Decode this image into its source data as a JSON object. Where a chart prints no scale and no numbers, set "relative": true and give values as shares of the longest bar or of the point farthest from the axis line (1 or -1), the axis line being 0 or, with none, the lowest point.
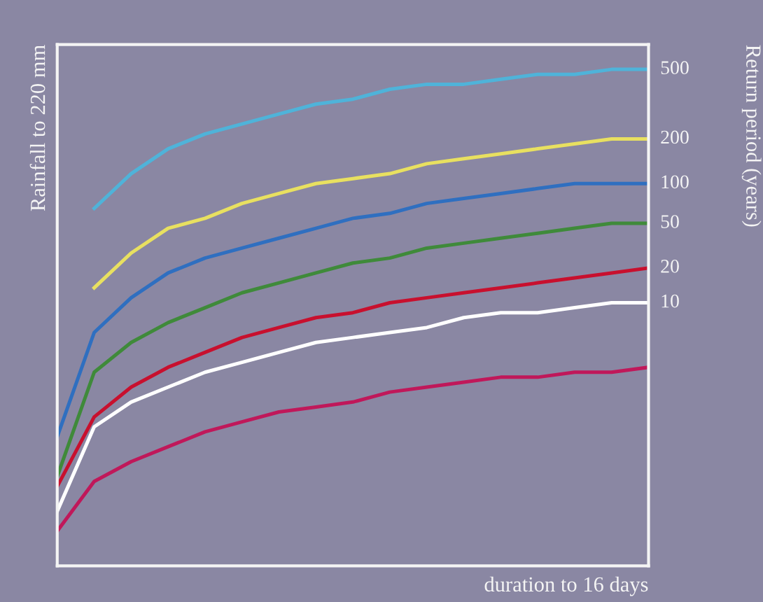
{
  "chart_data": {
    "type": "line",
    "relative": true,
    "ylabel": "Rainfall to 220 mm",
    "xlabel": "duration to 16 days",
    "y2label": "Return period (years)",
    "grid": false,
    "legend": false,
    "marker": "none",
    "line_style": "solid",
    "categories": [
      null,
      null,
      null,
      null,
      null,
      null,
      null,
      null,
      null,
      null,
      null,
      null,
      null,
      null,
      null,
      null,
      null
    ],
    "series": [
      {
        "name": "500",
        "color": "#4fb3d9",
        "values": [
          null,
          0.72,
          0.79,
          0.84,
          0.87,
          0.89,
          0.91,
          0.93,
          0.94,
          0.96,
          0.97,
          0.97,
          0.98,
          0.99,
          0.99,
          1.0,
          1.0
        ]
      },
      {
        "name": "200",
        "color": "#e8e060",
        "values": [
          null,
          0.56,
          0.63,
          0.68,
          0.7,
          0.73,
          0.75,
          0.77,
          0.78,
          0.79,
          0.81,
          0.82,
          0.83,
          0.84,
          0.85,
          0.86,
          0.86
        ]
      },
      {
        "name": "100",
        "color": "#2f6fc0",
        "values": [
          0.26,
          0.47,
          0.54,
          0.59,
          0.62,
          0.64,
          0.66,
          0.68,
          0.7,
          0.71,
          0.73,
          0.74,
          0.75,
          0.76,
          0.77,
          0.77,
          0.77
        ]
      },
      {
        "name": "50",
        "color": "#3f8a3a",
        "values": [
          0.18,
          0.39,
          0.45,
          0.49,
          0.52,
          0.55,
          0.57,
          0.59,
          0.61,
          0.62,
          0.64,
          0.65,
          0.66,
          0.67,
          0.68,
          0.69,
          0.69
        ]
      },
      {
        "name": "20",
        "color": "#c8102e",
        "values": [
          0.16,
          0.3,
          0.36,
          0.4,
          0.43,
          0.46,
          0.48,
          0.5,
          0.51,
          0.53,
          0.54,
          0.55,
          0.56,
          0.57,
          0.58,
          0.59,
          0.6
        ]
      },
      {
        "name": "10",
        "color": "#ffffff",
        "values": [
          0.11,
          0.28,
          0.33,
          0.36,
          0.39,
          0.41,
          0.43,
          0.45,
          0.46,
          0.47,
          0.48,
          0.5,
          0.51,
          0.51,
          0.52,
          0.53,
          0.53
        ]
      },
      {
        "color": "#c0185a",
        "values": [
          0.07,
          0.17,
          0.21,
          0.24,
          0.27,
          0.29,
          0.31,
          0.32,
          0.33,
          0.35,
          0.36,
          0.37,
          0.38,
          0.38,
          0.39,
          0.39,
          0.4
        ]
      }
    ]
  }
}
